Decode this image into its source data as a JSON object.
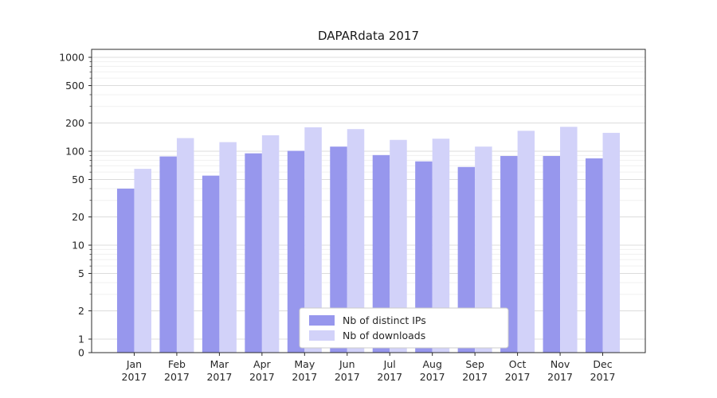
{
  "chart_data": {
    "type": "bar",
    "title": "DAPARdata 2017",
    "xlabel": "",
    "ylabel": "",
    "yscale": "symlog",
    "grid": true,
    "legend_position": "lower center",
    "ylim": [
      0,
      1200
    ],
    "yticks": [
      0,
      1,
      2,
      5,
      10,
      20,
      50,
      100,
      200,
      500,
      1000
    ],
    "categories": [
      "Jan",
      "Feb",
      "Mar",
      "Apr",
      "May",
      "Jun",
      "Jul",
      "Aug",
      "Sep",
      "Oct",
      "Nov",
      "Dec"
    ],
    "category_year": "2017",
    "series": [
      {
        "name": "Nb of distinct IPs",
        "color": "#9797ed",
        "values": [
          40,
          88,
          55,
          95,
          101,
          112,
          91,
          78,
          68,
          89,
          89,
          84
        ]
      },
      {
        "name": "Nb of downloads",
        "color": "#d2d2f9",
        "values": [
          65,
          138,
          125,
          148,
          180,
          172,
          132,
          136,
          112,
          165,
          182,
          157
        ]
      }
    ],
    "colors": {
      "major_grid": "#dcdcdc",
      "minor_grid": "#f0f0f0",
      "axis": "#2b2b2b",
      "text": "#262626",
      "legend_border": "#cccccc",
      "background": "#ffffff"
    }
  }
}
